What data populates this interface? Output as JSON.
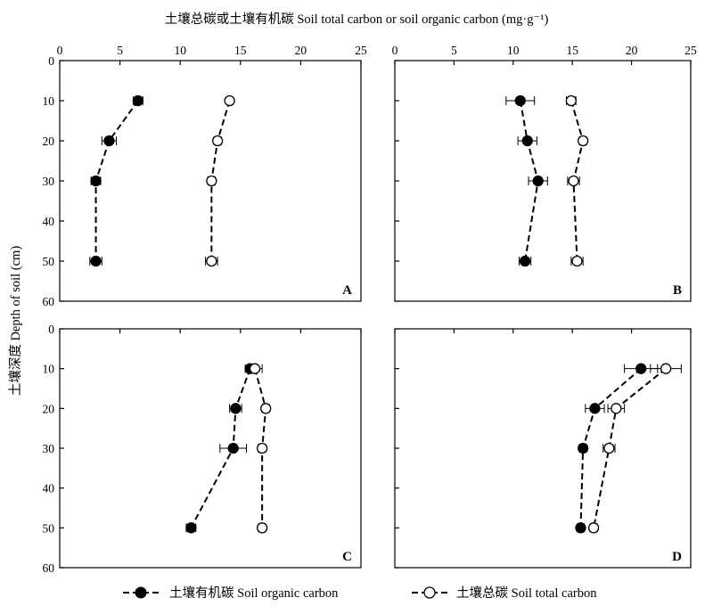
{
  "x_axis_title": "土壤总碳或土壤有机碳 Soil total carbon or soil organic carbon (mg·g⁻¹)",
  "y_axis_title": "土壤深度 Depth of soil (cm)",
  "legend": {
    "organic_label": "土壤有机碳 Soil organic carbon",
    "total_label": "土壤总碳 Soil total carbon"
  },
  "chart_data": [
    {
      "type": "line",
      "panel": "A",
      "xlim": [
        0,
        25
      ],
      "ylim": [
        0,
        60
      ],
      "x_ticks": [
        0,
        5,
        10,
        15,
        20,
        25
      ],
      "y_ticks": [
        0,
        10,
        20,
        30,
        40,
        50,
        60
      ],
      "series": [
        {
          "name": "土壤有机碳 Soil organic carbon",
          "marker": "filled",
          "depth": [
            10,
            20,
            30,
            50
          ],
          "values": [
            6.5,
            4.1,
            3.0,
            3.0
          ],
          "error": [
            0.4,
            0.6,
            0.4,
            0.5
          ]
        },
        {
          "name": "土壤总碳 Soil total carbon",
          "marker": "open",
          "depth": [
            10,
            20,
            30,
            50
          ],
          "values": [
            14.1,
            13.1,
            12.6,
            12.6
          ],
          "error": [
            0.2,
            0.3,
            0.3,
            0.5
          ]
        }
      ]
    },
    {
      "type": "line",
      "panel": "B",
      "xlim": [
        0,
        25
      ],
      "ylim": [
        0,
        60
      ],
      "x_ticks": [
        0,
        5,
        10,
        15,
        20,
        25
      ],
      "y_ticks": [
        0,
        10,
        20,
        30,
        40,
        50,
        60
      ],
      "series": [
        {
          "name": "土壤有机碳 Soil organic carbon",
          "marker": "filled",
          "depth": [
            10,
            20,
            30,
            50
          ],
          "values": [
            10.6,
            11.2,
            12.1,
            11.0
          ],
          "error": [
            1.2,
            0.8,
            0.8,
            0.5
          ]
        },
        {
          "name": "土壤总碳 Soil total carbon",
          "marker": "open",
          "depth": [
            10,
            20,
            30,
            50
          ],
          "values": [
            14.9,
            15.9,
            15.1,
            15.4
          ],
          "error": [
            0.4,
            0.3,
            0.5,
            0.5
          ]
        }
      ]
    },
    {
      "type": "line",
      "panel": "C",
      "xlim": [
        0,
        25
      ],
      "ylim": [
        0,
        60
      ],
      "x_ticks": [
        0,
        5,
        10,
        15,
        20,
        25
      ],
      "y_ticks": [
        0,
        10,
        20,
        30,
        40,
        50,
        60
      ],
      "series": [
        {
          "name": "土壤有机碳 Soil organic carbon",
          "marker": "filled",
          "depth": [
            10,
            20,
            30,
            50
          ],
          "values": [
            15.8,
            14.6,
            14.4,
            10.9
          ],
          "error": [
            0.4,
            0.5,
            1.1,
            0.4
          ]
        },
        {
          "name": "土壤总碳 Soil total carbon",
          "marker": "open",
          "depth": [
            10,
            20,
            30,
            50
          ],
          "values": [
            16.2,
            17.1,
            16.8,
            16.8
          ],
          "error": [
            0.6,
            0.3,
            0.3,
            0.3
          ]
        }
      ]
    },
    {
      "type": "line",
      "panel": "D",
      "xlim": [
        0,
        25
      ],
      "ylim": [
        0,
        60
      ],
      "x_ticks": [
        0,
        5,
        10,
        15,
        20,
        25
      ],
      "y_ticks": [
        0,
        10,
        20,
        30,
        40,
        50,
        60
      ],
      "series": [
        {
          "name": "土壤有机碳 Soil organic carbon",
          "marker": "filled",
          "depth": [
            10,
            20,
            30,
            50
          ],
          "values": [
            20.8,
            16.9,
            15.9,
            15.7
          ],
          "error": [
            1.4,
            0.8,
            0.3,
            0.3
          ]
        },
        {
          "name": "土壤总碳 Soil total carbon",
          "marker": "open",
          "depth": [
            10,
            20,
            30,
            50
          ],
          "values": [
            22.9,
            18.7,
            18.1,
            16.8
          ],
          "error": [
            1.3,
            0.7,
            0.5,
            0.3
          ]
        }
      ]
    }
  ]
}
